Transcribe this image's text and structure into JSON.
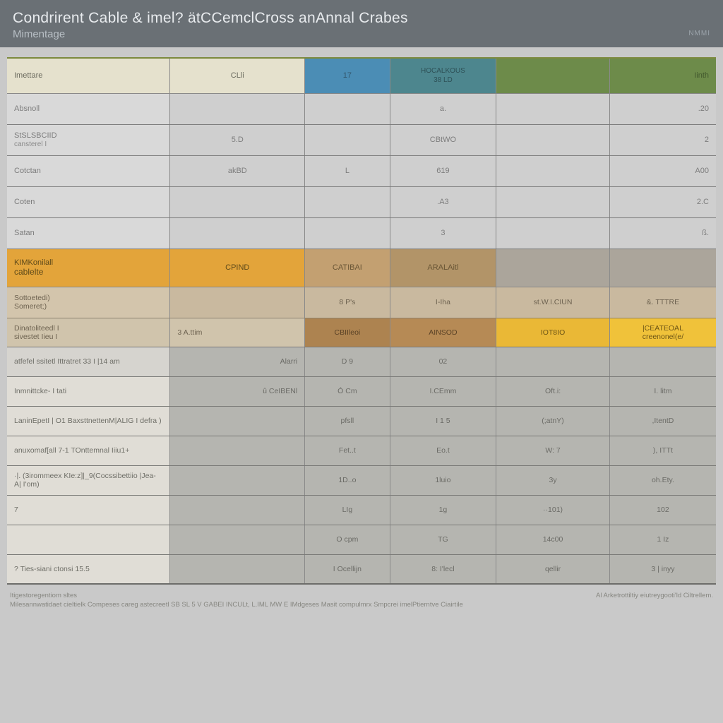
{
  "header": {
    "title": "Condrirent Cable & imel? ätCCemclCross anAnnal Crabes",
    "subtitle": "Mimentage",
    "right_label": "NMMI"
  },
  "top_headers": {
    "c0": "Imettare",
    "c1": "CLli",
    "c2": "17",
    "c3_l1": "HOCALKOUS",
    "c3_l2": "38 LD",
    "c4": "",
    "c5": "Iinth"
  },
  "upper_rows": [
    {
      "label": "Absnoll",
      "sub": "",
      "v1": "",
      "v2": "",
      "v3": "a.",
      "v4": "",
      "v5": ".20"
    },
    {
      "label": "StSLSBCIID",
      "sub": "cansterel I",
      "v1": "5.D",
      "v2": "",
      "v3": "CBtWO",
      "v4": "",
      "v5": "2"
    },
    {
      "label": "Cotctan",
      "sub": "",
      "v1": "akBD",
      "v2": "L",
      "v3": "619",
      "v4": "",
      "v5": "A00"
    },
    {
      "label": "Coten",
      "sub": "",
      "v1": "",
      "v2": "",
      "v3": ".A3",
      "v4": "",
      "v5": "2.C"
    },
    {
      "label": "Satan",
      "sub": "",
      "v1": "",
      "v2": "",
      "v3": "3",
      "v4": "",
      "v5": "ß."
    }
  ],
  "section_header": {
    "l0a": "KIMKonilall",
    "l0b": "cablelte",
    "v1": "CPIND",
    "v2": "CATIBAI",
    "v3": "ARALAitl",
    "v4": ""
  },
  "tan_rows": [
    {
      "label": "Sottoetedi)",
      "sub": "Someret;)",
      "v1": "",
      "v2": "8 P's",
      "v3": "I-Iha",
      "v4": "st.W.I.CIUN",
      "v5": "&. TTTRE"
    }
  ],
  "brown_header": {
    "l0a": "Dinatoliteedl I",
    "l0b": "sivestet Iieu I",
    "v1": "3    A.ttim",
    "v2": "CBIIleoi",
    "v3": "AINSOD",
    "v4": "IOT8IO",
    "v5_l1": "|CEATEOAL",
    "v5_l2": "creenonel(e/"
  },
  "grey_rows": [
    {
      "label": "atfefel ssitetl Ittratret 33 I |14 am",
      "sub": "",
      "v1": "Alarri",
      "v2": "D 9",
      "v3": "02",
      "v4": "",
      "v5": ""
    },
    {
      "label": "Inmnittcke- I tati",
      "sub": "",
      "v1": "û CeIBENl",
      "v2": "Ó Cm",
      "v3": "I.CEmm",
      "v4": "Oft.i:",
      "v5": "I. litm"
    },
    {
      "label": "LaninEpetI | O1 BaxsttnettenM|ALIG I defra )",
      "sub": "",
      "v1": "",
      "v2": "pfsll",
      "v3": "I 1 5",
      "v4": "(;atnY)",
      "v5": ",ItentD"
    },
    {
      "label": "anuxomaf[all 7-1 TOnttemnal Iiiu1+",
      "sub": "",
      "v1": "",
      "v2": "Fet..t",
      "v3": "Eo.t",
      "v4": "W: 7",
      "v5": "), ITTt"
    },
    {
      "label": "·|.  (3irommeex KIe:z]|_9(Cocssibettiio |Jea-A| I'om)",
      "sub": "",
      "v1": "",
      "v2": "1D..o",
      "v3": "1luio",
      "v4": "3y",
      "v5": "oh.Ety."
    },
    {
      "label": "7",
      "sub": "",
      "v1": "",
      "v2": "LIg",
      "v3": "1g",
      "v4": "··101)",
      "v5": "102"
    },
    {
      "label": "",
      "sub": "",
      "v1": "",
      "v2": "O cpm",
      "v3": "TG",
      "v4": "14c00",
      "v5": "1 Iz"
    },
    {
      "label": "?  Ties-siani ctonsi 15.5",
      "sub": "",
      "v1": "",
      "v2": "I Ocellijn",
      "v3": "8: I'lecl",
      "v4": "qellir",
      "v5": "3 | inyy"
    }
  ],
  "footer": {
    "left1": "Itigestoregentiom sltes",
    "left2": "Milesannwatidaet cieltielk Compeses careg astecreetl SB SL 5 V GABEI   INCULt, L.IML MW E IMdgeses Masit compulmrx Smpcrei imelPtierntve Ciairtile",
    "right": "Al  Arketrottiltiy eiutreygooti'ld Ciltrellem."
  },
  "style": {
    "page_bg": "#c9c9c9",
    "header_bg": "#6a7075",
    "header_fg": "#e8ebee",
    "th_cream": "#e5e1cd",
    "th_blue": "#4b8db5",
    "th_teal": "#4d868e",
    "th_olive": "#6d8b4a",
    "row_bg": "#cfcfcf",
    "row_label_bg": "#d9d9d9",
    "sec_orange": "#e3a43a",
    "sec_tan": "#c3a071",
    "brown": "#ad8350",
    "yellow": "#eab836",
    "grey_row": "#b5b5b0",
    "grey_label": "#d6d4cf",
    "border": "#7a7a7a"
  }
}
